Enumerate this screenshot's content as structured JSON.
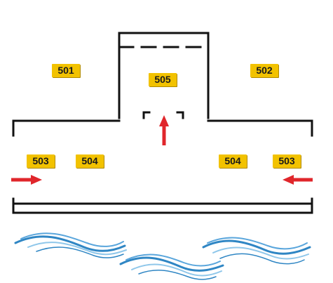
{
  "colors": {
    "wall": "#111111",
    "label_bg": "#f2c200",
    "arrow": "#e0262b",
    "wave_dark": "#2f86c4",
    "wave_light": "#8fc7ea"
  },
  "rooms": {
    "r501": "501",
    "r502": "502",
    "r503_left": "503",
    "r504_left": "504",
    "r505": "505",
    "r504_right": "504",
    "r503_right": "503"
  },
  "icons": {
    "entry_arrow_left": "arrow-right-icon",
    "entry_arrow_right": "arrow-left-icon",
    "entry_arrow_up": "arrow-up-icon",
    "water": "water-waves-icon"
  }
}
